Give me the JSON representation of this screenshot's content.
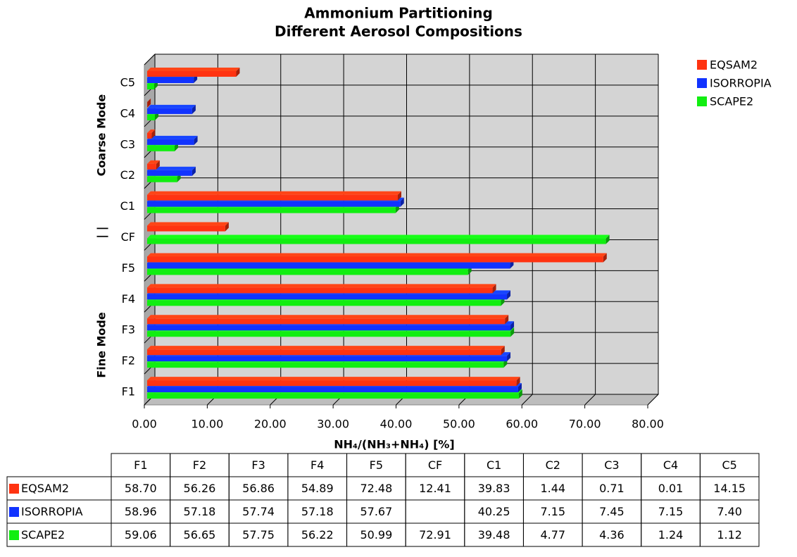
{
  "chart_data": {
    "type": "bar3d-horizontal",
    "title": [
      "Ammonium Partitioning",
      "Different Aerosol Compositions"
    ],
    "x_label": "NH₄/(NH₃+NH₄) [%]",
    "y_group_labels": [
      "Fine Mode",
      "| |",
      "Coarse Mode"
    ],
    "categories": [
      "F1",
      "F2",
      "F3",
      "F4",
      "F5",
      "CF",
      "C1",
      "C2",
      "C3",
      "C4",
      "C5"
    ],
    "series": [
      {
        "name": "EQSAM2",
        "color": "#ff3311",
        "values": [
          58.7,
          56.26,
          56.86,
          54.89,
          72.48,
          12.41,
          39.83,
          1.44,
          0.71,
          0.01,
          14.15
        ],
        "value_labels": [
          "58.70",
          "56.26",
          "56.86",
          "54.89",
          "72.48",
          "12.41",
          "39.83",
          "1.44",
          "0.71",
          "0.01",
          "14.15"
        ]
      },
      {
        "name": "ISORROPIA",
        "color": "#1133ff",
        "values": [
          58.96,
          57.18,
          57.74,
          57.18,
          57.67,
          null,
          40.25,
          7.15,
          7.45,
          7.15,
          7.4
        ],
        "value_labels": [
          "58.96",
          "57.18",
          "57.74",
          "57.18",
          "57.67",
          null,
          "40.25",
          "7.15",
          "7.45",
          "7.15",
          "7.40"
        ]
      },
      {
        "name": "SCAPE2",
        "color": "#11ee11",
        "values": [
          59.06,
          56.65,
          57.75,
          56.22,
          50.99,
          72.91,
          39.48,
          4.77,
          4.36,
          1.24,
          1.12
        ],
        "value_labels": [
          "59.06",
          "56.65",
          "57.75",
          "56.22",
          "50.99",
          "72.91",
          "39.48",
          "4.77",
          "4.36",
          "1.24",
          "1.12"
        ]
      }
    ],
    "xlim": [
      0,
      80
    ],
    "xticks": [
      {
        "value": 0,
        "label": "0.00"
      },
      {
        "value": 10,
        "label": "10.00"
      },
      {
        "value": 20,
        "label": "20.00"
      },
      {
        "value": 30,
        "label": "30.00"
      },
      {
        "value": 40,
        "label": "40.00"
      },
      {
        "value": 50,
        "label": "50.00"
      },
      {
        "value": 60,
        "label": "60.00"
      },
      {
        "value": 70,
        "label": "70.00"
      },
      {
        "value": 80,
        "label": "80.00"
      }
    ],
    "grid": true,
    "legend": "top-right"
  }
}
